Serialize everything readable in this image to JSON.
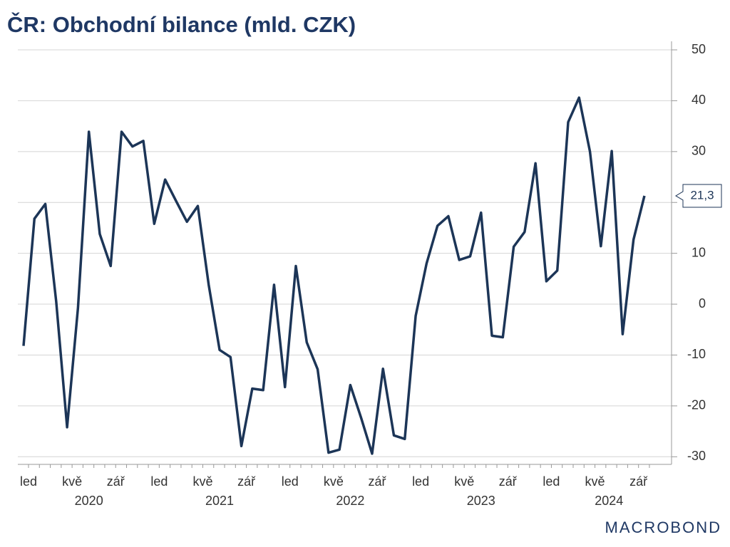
{
  "chart_data": {
    "type": "line",
    "title": "ČR: Obchodní bilance (mld. CZK)",
    "logo": "MACROBOND",
    "x": [
      "2020-01",
      "2020-02",
      "2020-03",
      "2020-04",
      "2020-05",
      "2020-06",
      "2020-07",
      "2020-08",
      "2020-09",
      "2020-10",
      "2020-11",
      "2020-12",
      "2021-01",
      "2021-02",
      "2021-03",
      "2021-04",
      "2021-05",
      "2021-06",
      "2021-07",
      "2021-08",
      "2021-09",
      "2021-10",
      "2021-11",
      "2021-12",
      "2022-01",
      "2022-02",
      "2022-03",
      "2022-04",
      "2022-05",
      "2022-06",
      "2022-07",
      "2022-08",
      "2022-09",
      "2022-10",
      "2022-11",
      "2022-12",
      "2023-01",
      "2023-02",
      "2023-03",
      "2023-04",
      "2023-05",
      "2023-06",
      "2023-07",
      "2023-08",
      "2023-09",
      "2023-10",
      "2023-11",
      "2023-12",
      "2024-01",
      "2024-02",
      "2024-03",
      "2024-04",
      "2024-05",
      "2024-06",
      "2024-07",
      "2024-08",
      "2024-09",
      "2024-10"
    ],
    "series": [
      {
        "name": "Obchodní bilance",
        "color": "#1c3557",
        "values": [
          -8.2,
          16.8,
          19.7,
          0.5,
          -24.2,
          -0.7,
          33.9,
          13.8,
          7.5,
          33.9,
          31,
          32.1,
          15.8,
          24.5,
          20.3,
          16.2,
          19.3,
          3.8,
          -9,
          -10.4,
          -27.9,
          -16.6,
          -16.9,
          3.8,
          -16.3,
          7.5,
          -7.5,
          -12.8,
          -29.2,
          -28.6,
          -15.9,
          -22.4,
          -29.4,
          -12.7,
          -25.8,
          -26.5,
          -2.3,
          8,
          15.4,
          17.3,
          8.7,
          9.4,
          18,
          -6.2,
          -6.5,
          11.3,
          14.2,
          27.7,
          4.5,
          6.6,
          35.8,
          40.6,
          30,
          11.4,
          30.1,
          -5.9,
          12.7,
          21.3
        ],
        "value_labels": [
          null,
          null,
          null,
          null,
          null,
          null,
          null,
          null,
          null,
          null,
          null,
          null,
          null,
          null,
          null,
          null,
          null,
          null,
          null,
          null,
          null,
          null,
          null,
          null,
          null,
          null,
          null,
          null,
          null,
          null,
          null,
          null,
          null,
          null,
          null,
          null,
          null,
          null,
          null,
          null,
          null,
          null,
          null,
          null,
          null,
          null,
          null,
          null,
          null,
          null,
          null,
          null,
          null,
          null,
          null,
          null,
          null,
          "21,3"
        ]
      }
    ],
    "xticks": [
      {
        "value": "2020-01",
        "label": "led"
      },
      {
        "value": "2020-05",
        "label": "kvě"
      },
      {
        "value": "2020-09",
        "label": "zář"
      },
      {
        "value": "2021-01",
        "label": "led"
      },
      {
        "value": "2021-05",
        "label": "kvě"
      },
      {
        "value": "2021-09",
        "label": "zář"
      },
      {
        "value": "2022-01",
        "label": "led"
      },
      {
        "value": "2022-05",
        "label": "kvě"
      },
      {
        "value": "2022-09",
        "label": "zář"
      },
      {
        "value": "2023-01",
        "label": "led"
      },
      {
        "value": "2023-05",
        "label": "kvě"
      },
      {
        "value": "2023-09",
        "label": "zář"
      },
      {
        "value": "2024-01",
        "label": "led"
      },
      {
        "value": "2024-05",
        "label": "kvě"
      },
      {
        "value": "2024-09",
        "label": "zář"
      }
    ],
    "years": [
      2020,
      2021,
      2022,
      2023,
      2024
    ],
    "ylim": [
      -31.5,
      50
    ],
    "yticks": [
      -30,
      -20,
      -10,
      0,
      10,
      20,
      30,
      40,
      50
    ],
    "grid": true
  }
}
